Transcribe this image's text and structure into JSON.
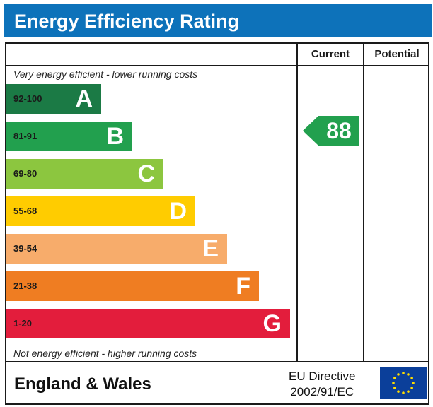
{
  "header": {
    "title": "Energy Efficiency Rating"
  },
  "columns": {
    "current": "Current",
    "potential": "Potential"
  },
  "notes": {
    "top": "Very energy efficient - lower running costs",
    "bottom": "Not energy efficient - higher running costs"
  },
  "chart_data": {
    "type": "bar",
    "title": "Energy Efficiency Rating",
    "bands": [
      {
        "range": "92-100",
        "letter": "A",
        "color": "#1b7a45"
      },
      {
        "range": "81-91",
        "letter": "B",
        "color": "#22a04e"
      },
      {
        "range": "69-80",
        "letter": "C",
        "color": "#8cc63f"
      },
      {
        "range": "55-68",
        "letter": "D",
        "color": "#ffcc00"
      },
      {
        "range": "39-54",
        "letter": "E",
        "color": "#f7ac6b"
      },
      {
        "range": "21-38",
        "letter": "F",
        "color": "#ef7d22"
      },
      {
        "range": "1-20",
        "letter": "G",
        "color": "#e31d3c"
      }
    ],
    "current": {
      "value": "88",
      "band": "B",
      "color": "#22a04e"
    },
    "potential": null
  },
  "footer": {
    "region": "England & Wales",
    "directive_line1": "EU Directive",
    "directive_line2": "2002/91/EC",
    "flag_colors": {
      "field": "#0b3f9a",
      "stars": "#ffdd00"
    }
  }
}
